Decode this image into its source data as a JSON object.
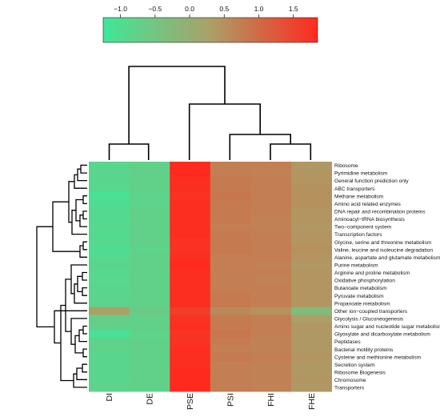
{
  "chart_data": {
    "type": "heatmap",
    "colorbar": {
      "ticks": [
        "−1.0",
        "−0.5",
        "0.0",
        "0.5",
        "1.0",
        "1.5"
      ],
      "tick_values": [
        -1.0,
        -0.5,
        0.0,
        0.5,
        1.0,
        1.5
      ],
      "range": [
        -1.25,
        1.85
      ],
      "colors": {
        "low": "#3ee89a",
        "mid": "#aaa068",
        "high": "#ff2a1e"
      }
    },
    "columns": [
      "DI",
      "DE",
      "PSE",
      "PSI",
      "FHI",
      "FHE"
    ],
    "rows": [
      "Ribosome",
      "Pyrimidine metabolism",
      "General function prediction only",
      "ABC transporters",
      "Methane metabolism",
      "Amino acid related enzymes",
      "DNA repair and recombination proteins",
      "Aminoacyl−tRNA biosynthesis",
      "Two−component system",
      "Transcription factors",
      "Glycine, serine and threonine metabolism",
      "Valine, leucine and isoleucine degradation",
      "Alanine, aspartate and glutamate metabolism",
      "Purine metabolism",
      "Arginine and proline metabolism",
      "Oxidative phosphorylation",
      "Butanoate metabolism",
      "Pyruvate metabolism",
      "Propanoate metabolism",
      "Other ion−coupled transporters",
      "Glycolysis / Gluconeogenesis",
      "Amino sugar and nucleotide sugar metabolism",
      "Glyoxylate and dicarboxylate metabolism",
      "Peptidases",
      "Bacterial motility proteins",
      "Cysteine and methionine metabolism",
      "Secretion system",
      "Ribosome Biogenesis",
      "Chromosome",
      "Transporters"
    ],
    "values": [
      [
        -0.85,
        -0.75,
        1.85,
        0.75,
        0.75,
        0.4
      ],
      [
        -0.85,
        -0.75,
        1.85,
        0.75,
        0.7,
        0.45
      ],
      [
        -0.85,
        -0.75,
        1.8,
        0.8,
        0.75,
        0.45
      ],
      [
        -0.9,
        -0.75,
        1.8,
        0.8,
        0.75,
        0.5
      ],
      [
        -1.1,
        -0.8,
        1.75,
        0.85,
        0.75,
        0.5
      ],
      [
        -1.0,
        -0.8,
        1.8,
        0.8,
        0.75,
        0.5
      ],
      [
        -0.95,
        -0.75,
        1.8,
        0.8,
        0.75,
        0.45
      ],
      [
        -0.95,
        -0.75,
        1.8,
        0.8,
        0.7,
        0.45
      ],
      [
        -0.9,
        -0.75,
        1.8,
        0.75,
        0.7,
        0.4
      ],
      [
        -0.95,
        -0.75,
        1.8,
        0.8,
        0.75,
        0.45
      ],
      [
        -0.9,
        -0.75,
        1.75,
        0.8,
        0.75,
        0.45
      ],
      [
        -1.0,
        -0.8,
        1.75,
        0.8,
        0.75,
        0.5
      ],
      [
        -0.95,
        -0.75,
        1.8,
        0.75,
        0.75,
        0.45
      ],
      [
        -0.85,
        -0.75,
        1.85,
        0.75,
        0.7,
        0.4
      ],
      [
        -0.9,
        -0.75,
        1.8,
        0.75,
        0.75,
        0.45
      ],
      [
        -0.9,
        -0.75,
        1.8,
        0.75,
        0.7,
        0.45
      ],
      [
        -0.85,
        -0.75,
        1.8,
        0.75,
        0.75,
        0.45
      ],
      [
        -0.85,
        -0.75,
        1.8,
        0.8,
        0.75,
        0.45
      ],
      [
        -0.8,
        -0.75,
        1.8,
        0.8,
        0.75,
        0.45
      ],
      [
        0.3,
        -0.6,
        1.6,
        0.6,
        0.5,
        -0.3
      ],
      [
        -0.7,
        -0.75,
        1.75,
        0.8,
        0.75,
        0.3
      ],
      [
        -0.75,
        -0.75,
        1.8,
        0.8,
        0.75,
        0.4
      ],
      [
        -1.1,
        -0.8,
        1.7,
        0.85,
        0.75,
        0.4
      ],
      [
        -0.8,
        -0.75,
        1.75,
        0.8,
        0.7,
        0.4
      ],
      [
        -0.8,
        -0.75,
        1.8,
        0.75,
        0.7,
        0.4
      ],
      [
        -0.85,
        -0.75,
        1.8,
        0.8,
        0.75,
        0.45
      ],
      [
        -0.85,
        -0.75,
        1.8,
        0.75,
        0.7,
        0.4
      ],
      [
        -0.85,
        -0.75,
        1.85,
        0.75,
        0.7,
        0.4
      ],
      [
        -0.85,
        -0.75,
        1.85,
        0.75,
        0.7,
        0.45
      ],
      [
        -0.8,
        -0.75,
        1.85,
        0.75,
        0.7,
        0.4
      ]
    ]
  }
}
